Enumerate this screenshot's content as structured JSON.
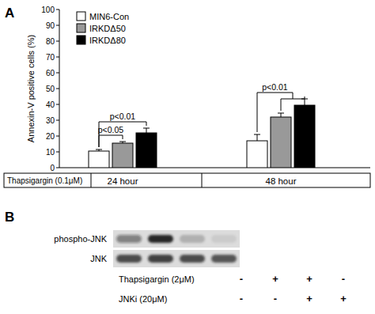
{
  "chart_data": {
    "type": "bar",
    "panel_label": "A",
    "y_label": "Annexin-V positive cells (%)",
    "x_label": "Thapsigargin (0.1μM)",
    "categories": [
      "24 hour",
      "48 hour"
    ],
    "series": [
      {
        "name": "MIN6-Con",
        "color": "#ffffff",
        "values": [
          10.5,
          17
        ],
        "errors": [
          1,
          4
        ]
      },
      {
        "name": "IRKDΔ50",
        "color": "#999999",
        "values": [
          15.5,
          32
        ],
        "errors": [
          1,
          2.5
        ]
      },
      {
        "name": "IRKDΔ80",
        "color": "#000000",
        "values": [
          22,
          39.5
        ],
        "errors": [
          3,
          4
        ]
      }
    ],
    "ylim": [
      0,
      100
    ],
    "yticks": [
      0,
      10,
      20,
      30,
      40,
      50,
      60,
      70,
      80,
      90,
      100
    ],
    "legend": "upper left",
    "annotations": [
      {
        "text": "p<0.05",
        "category": 0,
        "from": 0,
        "to": [
          1
        ]
      },
      {
        "text": "p<0.01",
        "category": 0,
        "from": 0,
        "to": [
          2
        ]
      },
      {
        "text": "p<0.01",
        "category": 1,
        "from": 0,
        "to": [
          1,
          2
        ]
      }
    ]
  },
  "blot": {
    "panel_label": "B",
    "rows": [
      {
        "label": "phospho-JNK",
        "values": [
          0.45,
          0.95,
          0.2,
          0.08
        ]
      },
      {
        "label": "JNK",
        "values": [
          0.75,
          0.8,
          0.75,
          0.7
        ]
      }
    ],
    "conditions": [
      {
        "label": "Thapsigargin (2μM)",
        "values": [
          "-",
          "+",
          "+",
          "-"
        ]
      },
      {
        "label": "JNKi (20μM)",
        "values": [
          "-",
          "-",
          "+",
          "+"
        ]
      }
    ]
  }
}
